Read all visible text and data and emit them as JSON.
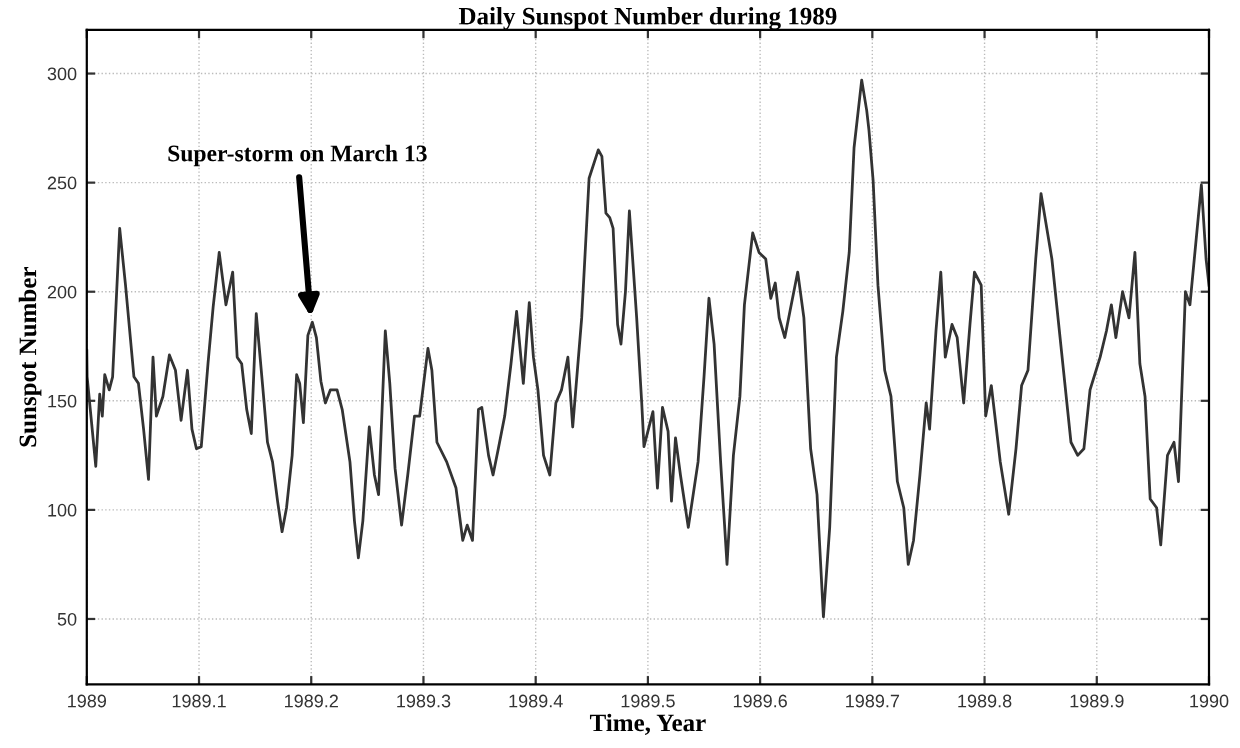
{
  "chart_data": {
    "type": "line",
    "title": "Daily Sunspot Number during 1989",
    "xlabel": "Time, Year",
    "ylabel": "Sunspot Number",
    "annotations": [
      {
        "text": "Super-storm on March 13",
        "x": 1989.2,
        "y": 186
      }
    ],
    "xlim": [
      1989,
      1990
    ],
    "xticks": [
      1989,
      1989.1,
      1989.2,
      1989.3,
      1989.4,
      1989.5,
      1989.6,
      1989.7,
      1989.8,
      1989.9,
      1990
    ],
    "ylim": [
      20,
      320
    ],
    "yticks": [
      50,
      100,
      150,
      200,
      250,
      300
    ],
    "grid": true,
    "marker": "none",
    "line_style": "solid",
    "series": [
      {
        "color": "#333333",
        "x": [
          1989.0,
          1989.0003,
          1989.008,
          1989.0115,
          1989.0138,
          1989.016,
          1989.02,
          1989.023,
          1989.0293,
          1989.0345,
          1989.042,
          1989.046,
          1989.0506,
          1989.055,
          1989.059,
          1989.062,
          1989.0678,
          1989.0736,
          1989.079,
          1989.084,
          1989.0897,
          1989.0937,
          1989.0977,
          1989.102,
          1989.108,
          1989.1126,
          1989.118,
          1989.124,
          1989.13,
          1989.134,
          1989.138,
          1989.1425,
          1989.1466,
          1989.151,
          1989.157,
          1989.161,
          1989.1655,
          1989.17,
          1989.174,
          1989.178,
          1989.183,
          1989.187,
          1989.1897,
          1989.193,
          1989.197,
          1989.201,
          1989.2046,
          1989.2086,
          1989.2126,
          1989.217,
          1989.223,
          1989.2276,
          1989.2345,
          1989.2385,
          1989.242,
          1989.246,
          1989.2517,
          1989.2563,
          1989.26,
          1989.266,
          1989.27,
          1989.2747,
          1989.2805,
          1989.286,
          1989.292,
          1989.2966,
          1989.304,
          1989.3075,
          1989.312,
          1989.3207,
          1989.329,
          1989.335,
          1989.339,
          1989.3437,
          1989.349,
          1989.352,
          1989.358,
          1989.362,
          1989.3667,
          1989.3724,
          1989.378,
          1989.383,
          1989.389,
          1989.3943,
          1989.398,
          1989.402,
          1989.407,
          1989.4126,
          1989.418,
          1989.423,
          1989.4287,
          1989.433,
          1989.441,
          1989.4476,
          1989.4558,
          1989.459,
          1989.4626,
          1989.466,
          1989.469,
          1989.473,
          1989.476,
          1989.48,
          1989.4835,
          1989.49,
          1989.4945,
          1989.4965,
          1989.5045,
          1989.5085,
          1989.513,
          1989.518,
          1989.521,
          1989.5246,
          1989.529,
          1989.536,
          1989.5447,
          1989.55,
          1989.5544,
          1989.559,
          1989.5648,
          1989.5705,
          1989.5762,
          1989.582,
          1989.586,
          1989.5934,
          1989.599,
          1989.605,
          1989.6095,
          1989.6135,
          1989.617,
          1989.622,
          1989.6266,
          1989.6335,
          1989.639,
          1989.645,
          1989.6507,
          1989.6564,
          1989.662,
          1989.668,
          1989.6737,
          1989.6794,
          1989.6837,
          1989.6905,
          1989.695,
          1989.697,
          1989.7007,
          1989.705,
          1989.711,
          1989.7166,
          1989.7223,
          1989.728,
          1989.732,
          1989.7367,
          1989.7424,
          1989.748,
          1989.751,
          1989.7567,
          1989.761,
          1989.765,
          1989.771,
          1989.7756,
          1989.7814,
          1989.787,
          1989.791,
          1989.797,
          1989.801,
          1989.806,
          1989.814,
          1989.8215,
          1989.828,
          1989.833,
          1989.8387,
          1989.8456,
          1989.8503,
          1989.86,
          1989.8685,
          1989.877,
          1989.883,
          1989.8885,
          1989.894,
          1989.903,
          1989.9086,
          1989.913,
          1989.917,
          1989.923,
          1989.9287,
          1989.934,
          1989.9384,
          1989.943,
          1989.9476,
          1989.9533,
          1989.957,
          1989.963,
          1989.9688,
          1989.9728,
          1989.979,
          1989.983,
          1989.9932,
          1989.9974,
          1990.0
        ],
        "values": [
          173,
          161,
          120,
          153,
          143,
          162,
          155,
          161,
          229,
          203,
          161,
          158,
          137,
          114,
          170,
          143,
          152,
          171,
          164,
          141,
          164,
          137,
          128,
          129,
          167,
          193,
          218,
          194,
          209,
          170,
          167,
          146,
          135,
          190,
          155,
          131,
          122,
          104,
          90,
          101,
          125,
          162,
          158,
          140,
          180,
          186,
          179,
          159,
          149,
          155,
          155,
          146,
          122,
          95,
          78,
          95,
          138,
          116,
          107,
          182,
          158,
          119,
          93,
          116,
          143,
          143,
          174,
          164,
          131,
          122,
          110,
          86,
          93,
          86,
          146,
          147,
          125,
          116,
          128,
          143,
          167,
          191,
          158,
          195,
          170,
          155,
          125,
          116,
          149,
          155,
          170,
          138,
          188,
          252,
          265,
          262,
          236,
          234,
          229,
          185,
          176,
          200,
          237,
          188,
          149,
          129,
          145,
          110,
          147,
          136,
          104,
          133,
          116,
          92,
          122,
          161,
          197,
          176,
          122,
          75,
          125,
          152,
          194,
          227,
          218,
          215,
          197,
          204,
          188,
          179,
          191,
          209,
          188,
          128,
          107,
          51,
          92,
          170,
          191,
          218,
          266,
          297,
          283,
          274,
          251,
          203,
          164,
          152,
          113,
          101,
          75,
          86,
          116,
          149,
          137,
          182,
          209,
          170,
          185,
          179,
          149,
          185,
          209,
          203,
          143,
          157,
          122,
          98,
          128,
          157,
          164,
          215,
          245,
          215,
          173,
          131,
          125,
          128,
          155,
          170,
          182,
          194,
          179,
          200,
          188,
          218,
          167,
          152,
          105,
          101,
          84,
          125,
          131,
          113,
          200,
          194,
          249,
          215,
          203
        ]
      }
    ]
  }
}
